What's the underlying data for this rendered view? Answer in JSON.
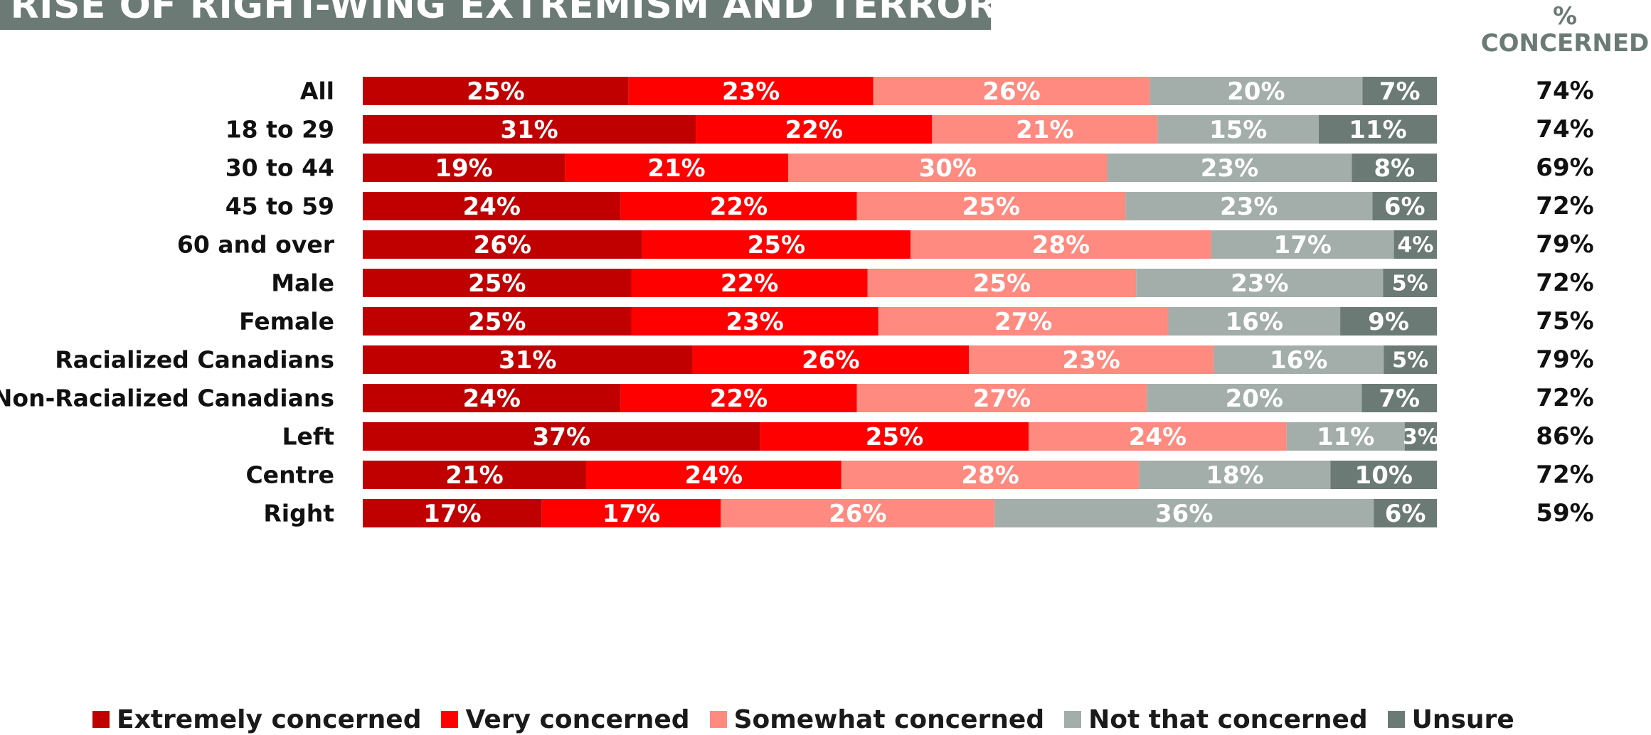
{
  "header": {
    "title": "E RISE OF RIGHT-WING EXTREMISM AND TERRORISM",
    "concern_header_line1": "%",
    "concern_header_line2": "CONCERNED"
  },
  "colors": {
    "title_bg": "#6b7a75",
    "extremely": "#c00000",
    "very": "#ff0000",
    "somewhat": "#ff8a80",
    "not_that": "#a3aeab",
    "unsure": "#6b7a75"
  },
  "chart_data": {
    "type": "bar",
    "orientation": "horizontal-stacked-100",
    "series": [
      {
        "name": "Extremely concerned",
        "color": "#c00000",
        "values": [
          25,
          31,
          19,
          24,
          26,
          25,
          25,
          31,
          24,
          37,
          21,
          17
        ]
      },
      {
        "name": "Very concerned",
        "color": "#ff0000",
        "values": [
          23,
          22,
          21,
          22,
          25,
          22,
          23,
          26,
          22,
          25,
          24,
          17
        ]
      },
      {
        "name": "Somewhat concerned",
        "color": "#ff8a80",
        "values": [
          26,
          21,
          30,
          25,
          28,
          25,
          27,
          23,
          27,
          24,
          28,
          26
        ]
      },
      {
        "name": "Not that concerned",
        "color": "#a3aeab",
        "values": [
          20,
          15,
          23,
          23,
          17,
          23,
          16,
          16,
          20,
          11,
          18,
          36
        ]
      },
      {
        "name": "Unsure",
        "color": "#6b7a75",
        "values": [
          7,
          11,
          8,
          6,
          4,
          5,
          9,
          5,
          7,
          3,
          10,
          6
        ]
      }
    ],
    "categories": [
      "All",
      "18 to 29",
      "30 to 44",
      "45 to 59",
      "60 and over",
      "Male",
      "Female",
      "Racialized Canadians",
      "Non-Racialized Canadians",
      "Left",
      "Centre",
      "Right"
    ],
    "groups": [
      [
        0
      ],
      [
        1,
        2,
        3,
        4
      ],
      [
        5,
        6
      ],
      [
        7,
        8
      ],
      [
        9,
        10,
        11
      ]
    ],
    "concerned_totals": [
      "74%",
      "74%",
      "69%",
      "72%",
      "79%",
      "72%",
      "75%",
      "79%",
      "72%",
      "86%",
      "72%",
      "59%"
    ],
    "legend": [
      "Extremely concerned",
      "Very concerned",
      "Somewhat concerned",
      "Not that concerned",
      "Unsure"
    ],
    "legend_position": "bottom"
  }
}
